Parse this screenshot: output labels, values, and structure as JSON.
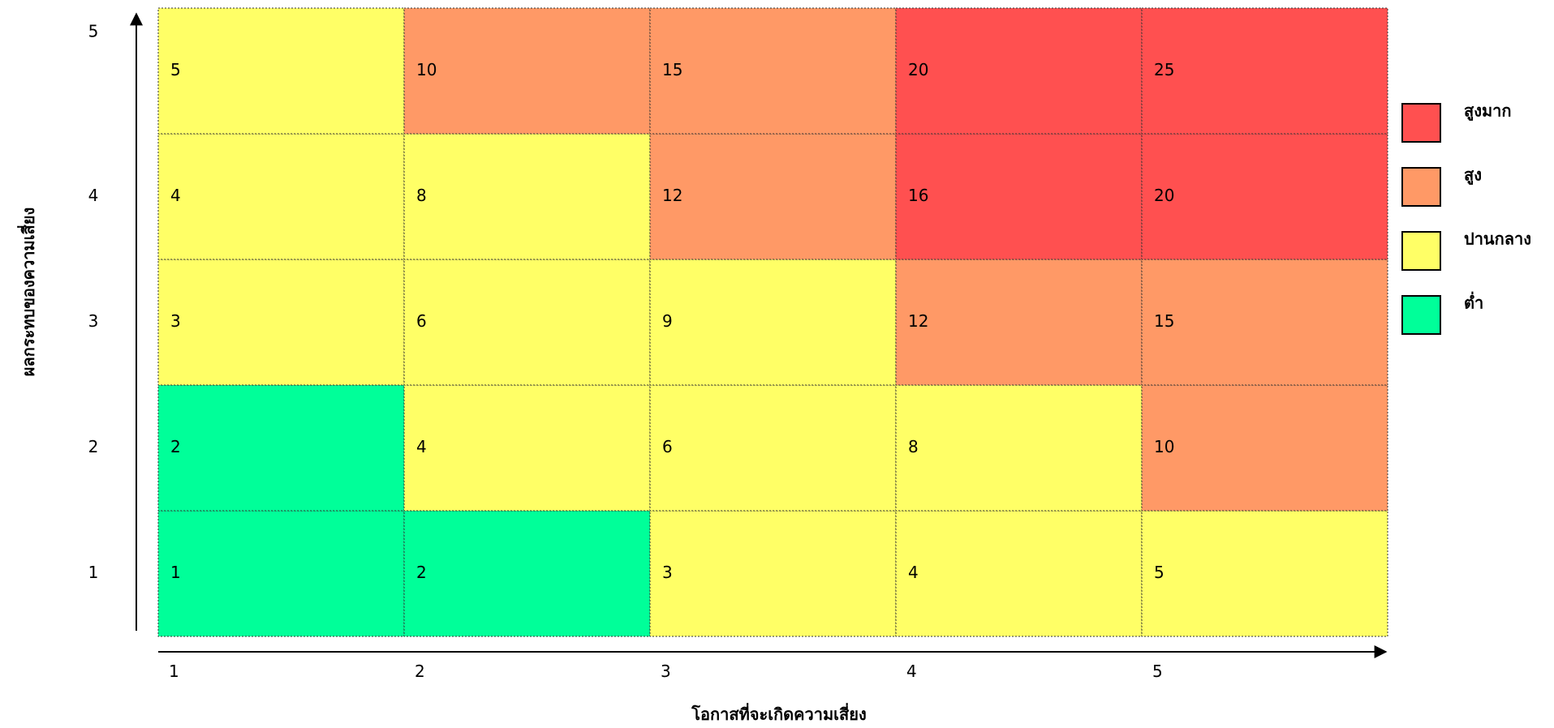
{
  "chart_data": {
    "type": "heatmap",
    "title": "",
    "xlabel": "โอกาสที่จะเกิดความเสี่ยง",
    "ylabel": "ผลกระทบของความเสี่ยง",
    "x": [
      1,
      2,
      3,
      4,
      5
    ],
    "y": [
      1,
      2,
      3,
      4,
      5
    ],
    "x_tick_labels": [
      "1",
      "2",
      "3",
      "4",
      "5"
    ],
    "y_tick_labels": [
      "1",
      "2",
      "3",
      "4",
      "5"
    ],
    "values": [
      [
        1,
        2,
        3,
        4,
        5
      ],
      [
        2,
        4,
        6,
        8,
        10
      ],
      [
        3,
        6,
        9,
        12,
        15
      ],
      [
        4,
        8,
        12,
        16,
        20
      ],
      [
        5,
        10,
        15,
        20,
        25
      ]
    ],
    "levels": [
      [
        0,
        0,
        1,
        1,
        1
      ],
      [
        0,
        1,
        1,
        1,
        2
      ],
      [
        1,
        1,
        1,
        2,
        2
      ],
      [
        1,
        1,
        2,
        3,
        3
      ],
      [
        1,
        2,
        2,
        3,
        3
      ]
    ],
    "legend": [
      {
        "level": 3,
        "label": "สูงมาก",
        "color": "#ff5050"
      },
      {
        "level": 2,
        "label": "สูง",
        "color": "#ff9966"
      },
      {
        "level": 1,
        "label": "ปานกลาง",
        "color": "#ffff66"
      },
      {
        "level": 0,
        "label": "ต่ำ",
        "color": "#00ff99"
      }
    ],
    "legend_position": "right",
    "grid": true
  }
}
